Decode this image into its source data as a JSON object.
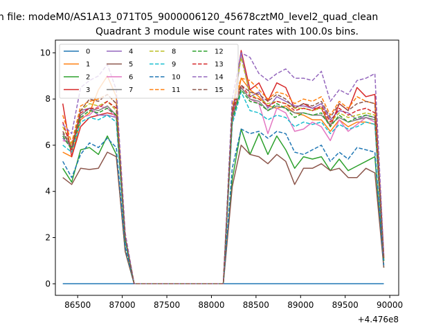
{
  "chart_data": {
    "type": "line",
    "suptitle": "n file: modeM0/AS1A13_071T05_9000006120_45678cztM0_level2_quad_clean",
    "title": "Quadrant 3 module wise count rates with 100.0s bins.",
    "xlabel": "",
    "ylabel": "",
    "x_offset_label": "+4.476e8",
    "xlim": [
      86250,
      90100
    ],
    "ylim": [
      -0.5,
      10.55
    ],
    "xticks": [
      86500,
      87000,
      87500,
      88000,
      88500,
      89000,
      89500,
      90000
    ],
    "yticks": [
      0,
      2,
      4,
      6,
      8,
      10
    ],
    "grid": false,
    "legend": {
      "placement": "upper-left",
      "columns": 4
    },
    "x": [
      86333,
      86433,
      86533,
      86633,
      86733,
      86833,
      86933,
      87033,
      87133,
      87233,
      87333,
      87433,
      87533,
      87633,
      87733,
      87833,
      87933,
      88033,
      88133,
      88233,
      88333,
      88433,
      88533,
      88633,
      88733,
      88833,
      88933,
      89033,
      89133,
      89233,
      89333,
      89433,
      89533,
      89633,
      89733,
      89833,
      89933
    ],
    "series": [
      {
        "name": "0",
        "color": "#1f77b4",
        "dash": "solid",
        "values": [
          0,
          0,
          0,
          0,
          0,
          0,
          0,
          0,
          0,
          0,
          0,
          0,
          0,
          0,
          0,
          0,
          0,
          0,
          0,
          0,
          0,
          0,
          0,
          0,
          0,
          0,
          0,
          0,
          0,
          0,
          0,
          0,
          0,
          0,
          0,
          0,
          0
        ]
      },
      {
        "name": "1",
        "color": "#ff7f0e",
        "dash": "solid",
        "values": [
          5.7,
          5.5,
          7.1,
          7.4,
          8.4,
          9.0,
          8.1,
          2.0,
          0,
          0,
          0,
          0,
          0,
          0,
          0,
          0,
          0,
          0,
          0,
          7.0,
          8.9,
          8.4,
          8.1,
          7.7,
          7.6,
          7.7,
          7.4,
          7.3,
          7.1,
          7.1,
          6.6,
          7.1,
          6.8,
          7.0,
          7.0,
          6.9,
          1.0
        ]
      },
      {
        "name": "2",
        "color": "#2ca02c",
        "dash": "solid",
        "values": [
          5.0,
          4.4,
          5.8,
          5.9,
          5.6,
          6.4,
          5.6,
          1.4,
          0,
          0,
          0,
          0,
          0,
          0,
          0,
          0,
          0,
          0,
          0,
          4.5,
          6.7,
          5.6,
          6.5,
          5.6,
          6.4,
          5.8,
          5.0,
          5.5,
          5.4,
          5.5,
          4.9,
          5.4,
          4.9,
          5.1,
          5.3,
          5.5,
          0.7
        ]
      },
      {
        "name": "3",
        "color": "#d62728",
        "dash": "solid",
        "values": [
          7.8,
          5.5,
          6.8,
          7.2,
          7.3,
          7.4,
          7.3,
          1.9,
          0,
          0,
          0,
          0,
          0,
          0,
          0,
          0,
          0,
          0,
          0,
          7.3,
          10.1,
          8.4,
          8.7,
          7.9,
          8.7,
          8.5,
          7.6,
          7.8,
          7.6,
          7.6,
          6.8,
          7.8,
          7.5,
          8.5,
          8.1,
          8.2,
          1.2
        ]
      },
      {
        "name": "4",
        "color": "#9467bd",
        "dash": "solid",
        "values": [
          6.3,
          5.9,
          7.5,
          7.6,
          7.3,
          7.3,
          7.2,
          1.9,
          0,
          0,
          0,
          0,
          0,
          0,
          0,
          0,
          0,
          0,
          0,
          7.0,
          10.0,
          8.1,
          8.3,
          7.6,
          8.1,
          7.9,
          7.7,
          7.7,
          7.6,
          7.8,
          7.1,
          7.5,
          7.4,
          7.1,
          7.3,
          7.2,
          1.1
        ]
      },
      {
        "name": "5",
        "color": "#8c564b",
        "dash": "solid",
        "values": [
          4.6,
          4.3,
          5.0,
          4.95,
          5.0,
          5.7,
          5.5,
          1.4,
          0,
          0,
          0,
          0,
          0,
          0,
          0,
          0,
          0,
          0,
          0,
          4.2,
          6.0,
          5.6,
          5.5,
          5.2,
          5.6,
          5.3,
          4.3,
          5.0,
          5.0,
          5.2,
          4.9,
          5.0,
          4.6,
          4.6,
          5.0,
          4.8,
          0.7
        ]
      },
      {
        "name": "6",
        "color": "#e377c2",
        "dash": "solid",
        "values": [
          6.2,
          6.1,
          7.2,
          7.3,
          7.7,
          7.6,
          7.2,
          1.9,
          0,
          0,
          0,
          0,
          0,
          0,
          0,
          0,
          0,
          0,
          0,
          7.0,
          8.5,
          8.0,
          7.8,
          6.5,
          7.6,
          7.4,
          6.6,
          6.7,
          7.0,
          6.8,
          6.2,
          7.1,
          6.6,
          6.9,
          7.2,
          7.0,
          1.0
        ]
      },
      {
        "name": "7",
        "color": "#7f7f7f",
        "dash": "solid",
        "values": [
          6.5,
          5.9,
          7.3,
          7.6,
          7.5,
          7.7,
          7.3,
          2.0,
          0,
          0,
          0,
          0,
          0,
          0,
          0,
          0,
          0,
          0,
          0,
          7.2,
          8.5,
          8.0,
          7.9,
          7.5,
          7.7,
          7.6,
          7.4,
          7.4,
          7.3,
          7.3,
          6.9,
          7.2,
          7.0,
          7.1,
          7.2,
          7.1,
          1.0
        ]
      },
      {
        "name": "8",
        "color": "#bcbd22",
        "dash": "dashed",
        "values": [
          6.8,
          6.0,
          7.5,
          7.8,
          7.7,
          7.9,
          7.5,
          2.0,
          0,
          0,
          0,
          0,
          0,
          0,
          0,
          0,
          0,
          0,
          0,
          7.5,
          9.8,
          8.2,
          8.0,
          7.8,
          7.9,
          7.8,
          7.6,
          7.6,
          7.5,
          7.6,
          7.0,
          7.4,
          7.2,
          7.3,
          7.4,
          7.3,
          1.1
        ]
      },
      {
        "name": "9",
        "color": "#17becf",
        "dash": "dashed",
        "values": [
          6.0,
          5.7,
          7.0,
          7.2,
          7.1,
          7.3,
          7.0,
          1.8,
          0,
          0,
          0,
          0,
          0,
          0,
          0,
          0,
          0,
          0,
          0,
          6.9,
          8.3,
          7.5,
          7.4,
          7.1,
          7.3,
          7.2,
          6.8,
          7.0,
          6.9,
          7.0,
          6.5,
          6.9,
          6.7,
          6.8,
          7.0,
          6.9,
          1.0
        ]
      },
      {
        "name": "10",
        "color": "#1f77b4",
        "dash": "dashed",
        "values": [
          5.3,
          4.6,
          5.6,
          6.1,
          5.9,
          6.3,
          5.9,
          1.6,
          0,
          0,
          0,
          0,
          0,
          0,
          0,
          0,
          0,
          0,
          0,
          5.0,
          6.7,
          6.5,
          6.6,
          6.3,
          6.6,
          6.5,
          5.7,
          5.6,
          5.8,
          6.0,
          5.3,
          5.7,
          5.4,
          5.9,
          5.8,
          5.7,
          0.8
        ]
      },
      {
        "name": "11",
        "color": "#ff7f0e",
        "dash": "dashed",
        "values": [
          7.3,
          6.1,
          7.7,
          7.9,
          8.0,
          8.2,
          7.8,
          2.1,
          0,
          0,
          0,
          0,
          0,
          0,
          0,
          0,
          0,
          0,
          0,
          7.7,
          8.9,
          8.8,
          8.4,
          8.0,
          8.3,
          8.2,
          7.8,
          8.0,
          7.9,
          8.1,
          7.3,
          7.9,
          7.6,
          8.1,
          7.9,
          7.8,
          1.1
        ]
      },
      {
        "name": "12",
        "color": "#2ca02c",
        "dash": "dashed",
        "values": [
          6.4,
          5.8,
          7.2,
          7.5,
          7.4,
          7.6,
          7.3,
          1.9,
          0,
          0,
          0,
          0,
          0,
          0,
          0,
          0,
          0,
          0,
          0,
          7.1,
          8.4,
          7.9,
          7.8,
          7.5,
          7.8,
          7.6,
          7.2,
          7.4,
          7.3,
          7.4,
          6.8,
          7.3,
          7.0,
          7.2,
          7.3,
          7.2,
          1.0
        ]
      },
      {
        "name": "13",
        "color": "#d62728",
        "dash": "dashed",
        "values": [
          7.0,
          5.8,
          7.4,
          7.6,
          7.6,
          7.9,
          7.6,
          2.0,
          0,
          0,
          0,
          0,
          0,
          0,
          0,
          0,
          0,
          0,
          0,
          7.4,
          8.6,
          8.1,
          8.0,
          7.7,
          7.9,
          7.8,
          7.5,
          7.6,
          7.5,
          7.7,
          7.0,
          7.6,
          7.3,
          7.5,
          7.6,
          7.4,
          1.1
        ]
      },
      {
        "name": "14",
        "color": "#9467bd",
        "dash": "dashed",
        "values": [
          6.9,
          6.5,
          8.5,
          8.8,
          9.0,
          9.5,
          8.4,
          2.2,
          0,
          0,
          0,
          0,
          0,
          0,
          0,
          0,
          0,
          0,
          0,
          8.0,
          10.0,
          9.8,
          9.1,
          8.8,
          9.1,
          9.3,
          8.9,
          8.9,
          8.8,
          9.2,
          7.9,
          8.4,
          8.2,
          8.8,
          8.9,
          9.1,
          1.2
        ]
      },
      {
        "name": "15",
        "color": "#8c564b",
        "dash": "dashed",
        "values": [
          6.6,
          5.9,
          7.5,
          8.0,
          7.9,
          8.2,
          7.8,
          2.0,
          0,
          0,
          0,
          0,
          0,
          0,
          0,
          0,
          0,
          0,
          0,
          7.6,
          8.6,
          8.3,
          8.2,
          7.9,
          8.2,
          8.0,
          7.6,
          7.8,
          7.7,
          7.9,
          7.2,
          7.8,
          7.5,
          7.8,
          7.9,
          7.8,
          1.1
        ]
      }
    ]
  }
}
